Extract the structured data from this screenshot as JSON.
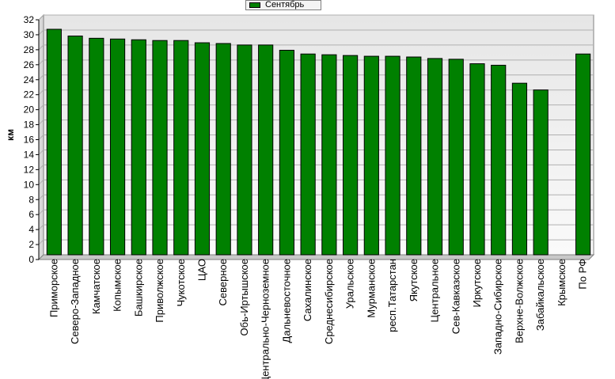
{
  "chart_data": {
    "type": "bar",
    "title": "",
    "xlabel": "",
    "ylabel": "км",
    "ylim": [
      0,
      32
    ],
    "yticks": [
      0,
      2,
      4,
      6,
      8,
      10,
      12,
      14,
      16,
      18,
      20,
      22,
      24,
      26,
      28,
      30,
      32
    ],
    "grid": true,
    "legend_position": "top-center",
    "colors": {
      "bar": "#008000",
      "bar_border": "#000000",
      "plot_background": "#eeeeee"
    },
    "categories": [
      "Приморское",
      "Северо-Западное",
      "Камчатское",
      "Копымское",
      "Башкирское",
      "Приволжское",
      "Чукотское",
      "ЦАО",
      "Северное",
      "Обь-Иртышское",
      "Центрально-Черноземное",
      "Дальневосточное",
      "Сахалинское",
      "Среднесибирское",
      "Уральское",
      "Мурманское",
      "респ.Татарстан",
      "Якутское",
      "Центральное",
      "Сев-Кавказское",
      "Иркутское",
      "Западно-Сибирское",
      "Верхне-Волжское",
      "Забайкальское",
      "Крымское",
      "По РФ"
    ],
    "series": [
      {
        "name": "Сентябрь",
        "values": [
          30.1,
          29.2,
          28.9,
          28.8,
          28.7,
          28.6,
          28.6,
          28.3,
          28.2,
          28.0,
          28.0,
          27.3,
          26.8,
          26.7,
          26.6,
          26.5,
          26.5,
          26.4,
          26.2,
          26.1,
          25.5,
          25.3,
          22.9,
          22.0,
          0,
          26.8
        ]
      }
    ]
  }
}
